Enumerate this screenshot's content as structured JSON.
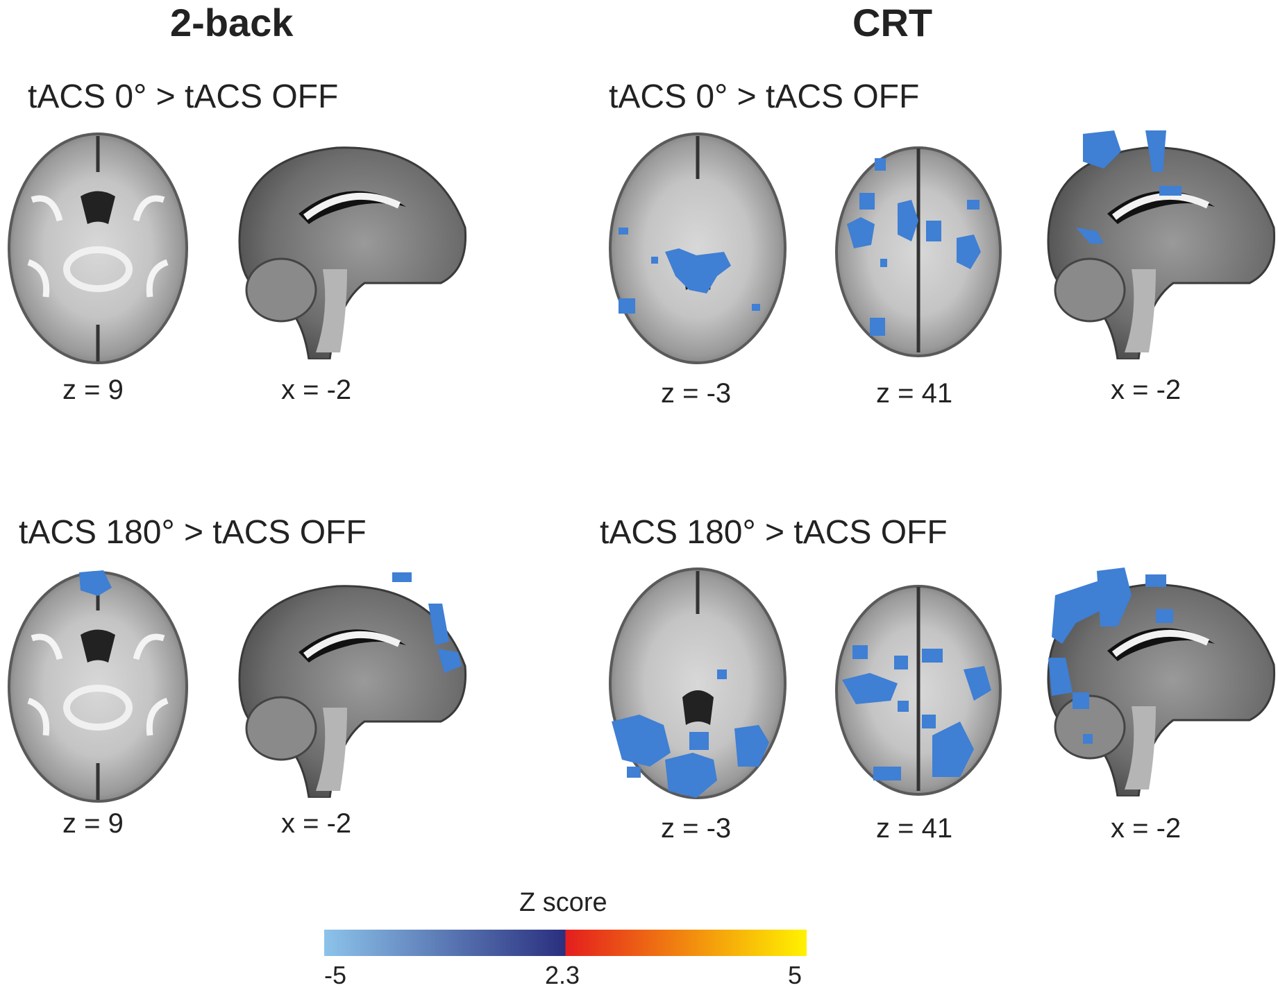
{
  "columns": [
    {
      "title": "2-back"
    },
    {
      "title": "CRT"
    }
  ],
  "panels": [
    {
      "condition": "tACS 0° > tACS OFF",
      "labels": [
        "z = 9",
        "x = -2"
      ]
    },
    {
      "condition": "tACS 0° > tACS OFF",
      "labels": [
        "z = -3",
        "z = 41",
        "x = -2"
      ]
    },
    {
      "condition": "tACS 180° > tACS OFF",
      "labels": [
        "z = 9",
        "x = -2"
      ]
    },
    {
      "condition": "tACS 180° > tACS OFF",
      "labels": [
        "z = -3",
        "z = 41",
        "x = -2"
      ]
    }
  ],
  "colorbar": {
    "label": "Z score",
    "ticks": [
      "-5",
      "2.3",
      "5"
    ],
    "colors": {
      "light_blue": "#8cc3ea",
      "dark_blue": "#2a2f7f",
      "red": "#e41e1e",
      "yellow": "#fff200"
    }
  },
  "activation_color": "#3f7fd4"
}
